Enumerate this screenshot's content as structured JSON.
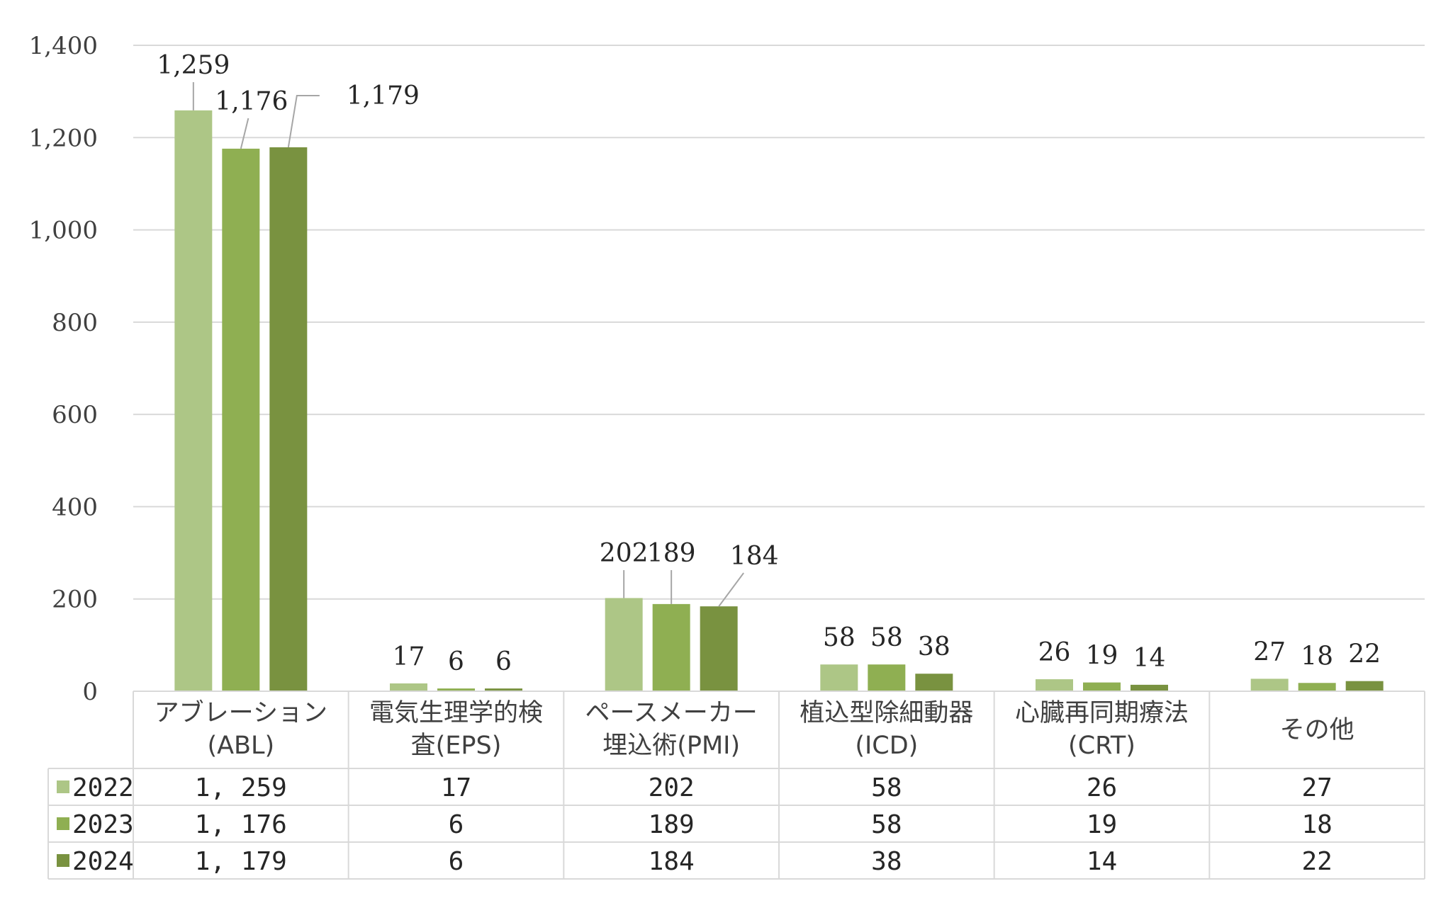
{
  "chart_data": {
    "type": "bar",
    "title": "",
    "xlabel": "",
    "ylabel": "",
    "ylim": [
      0,
      1400
    ],
    "yticks": [
      0,
      200,
      400,
      600,
      800,
      1000,
      1200,
      1400
    ],
    "ytick_labels": [
      "0",
      "200",
      "400",
      "600",
      "800",
      "1,000",
      "1,200",
      "1,400"
    ],
    "grid": true,
    "legend": "data-table-left",
    "categories": [
      {
        "line1": "アブレーション",
        "line2": "(ABL)"
      },
      {
        "line1": "電気生理学的検",
        "line2": "査(EPS)"
      },
      {
        "line1": "ペースメーカー",
        "line2": "埋込術(PMI)"
      },
      {
        "line1": "植込型除細動器",
        "line2": "(ICD)"
      },
      {
        "line1": "心臓再同期療法",
        "line2": "(CRT)"
      },
      {
        "line1": "その他",
        "line2": ""
      }
    ],
    "series": [
      {
        "name": "2022",
        "color": "#adc686",
        "values": [
          1259,
          17,
          202,
          58,
          26,
          27
        ],
        "labels": [
          "1,259",
          "17",
          "202",
          "58",
          "26",
          "27"
        ],
        "table": [
          "1, 259",
          "17",
          "202",
          "58",
          "26",
          "27"
        ]
      },
      {
        "name": "2023",
        "color": "#8faf52",
        "values": [
          1176,
          6,
          189,
          58,
          19,
          18
        ],
        "labels": [
          "1,176",
          "6",
          "189",
          "58",
          "19",
          "18"
        ],
        "table": [
          "1, 176",
          "6",
          "189",
          "58",
          "19",
          "18"
        ]
      },
      {
        "name": "2024",
        "color": "#799240",
        "values": [
          1179,
          6,
          184,
          38,
          14,
          22
        ],
        "labels": [
          "1,179",
          "6",
          "184",
          "38",
          "14",
          "22"
        ],
        "table": [
          "1, 179",
          "6",
          "184",
          "38",
          "14",
          "22"
        ]
      }
    ]
  }
}
